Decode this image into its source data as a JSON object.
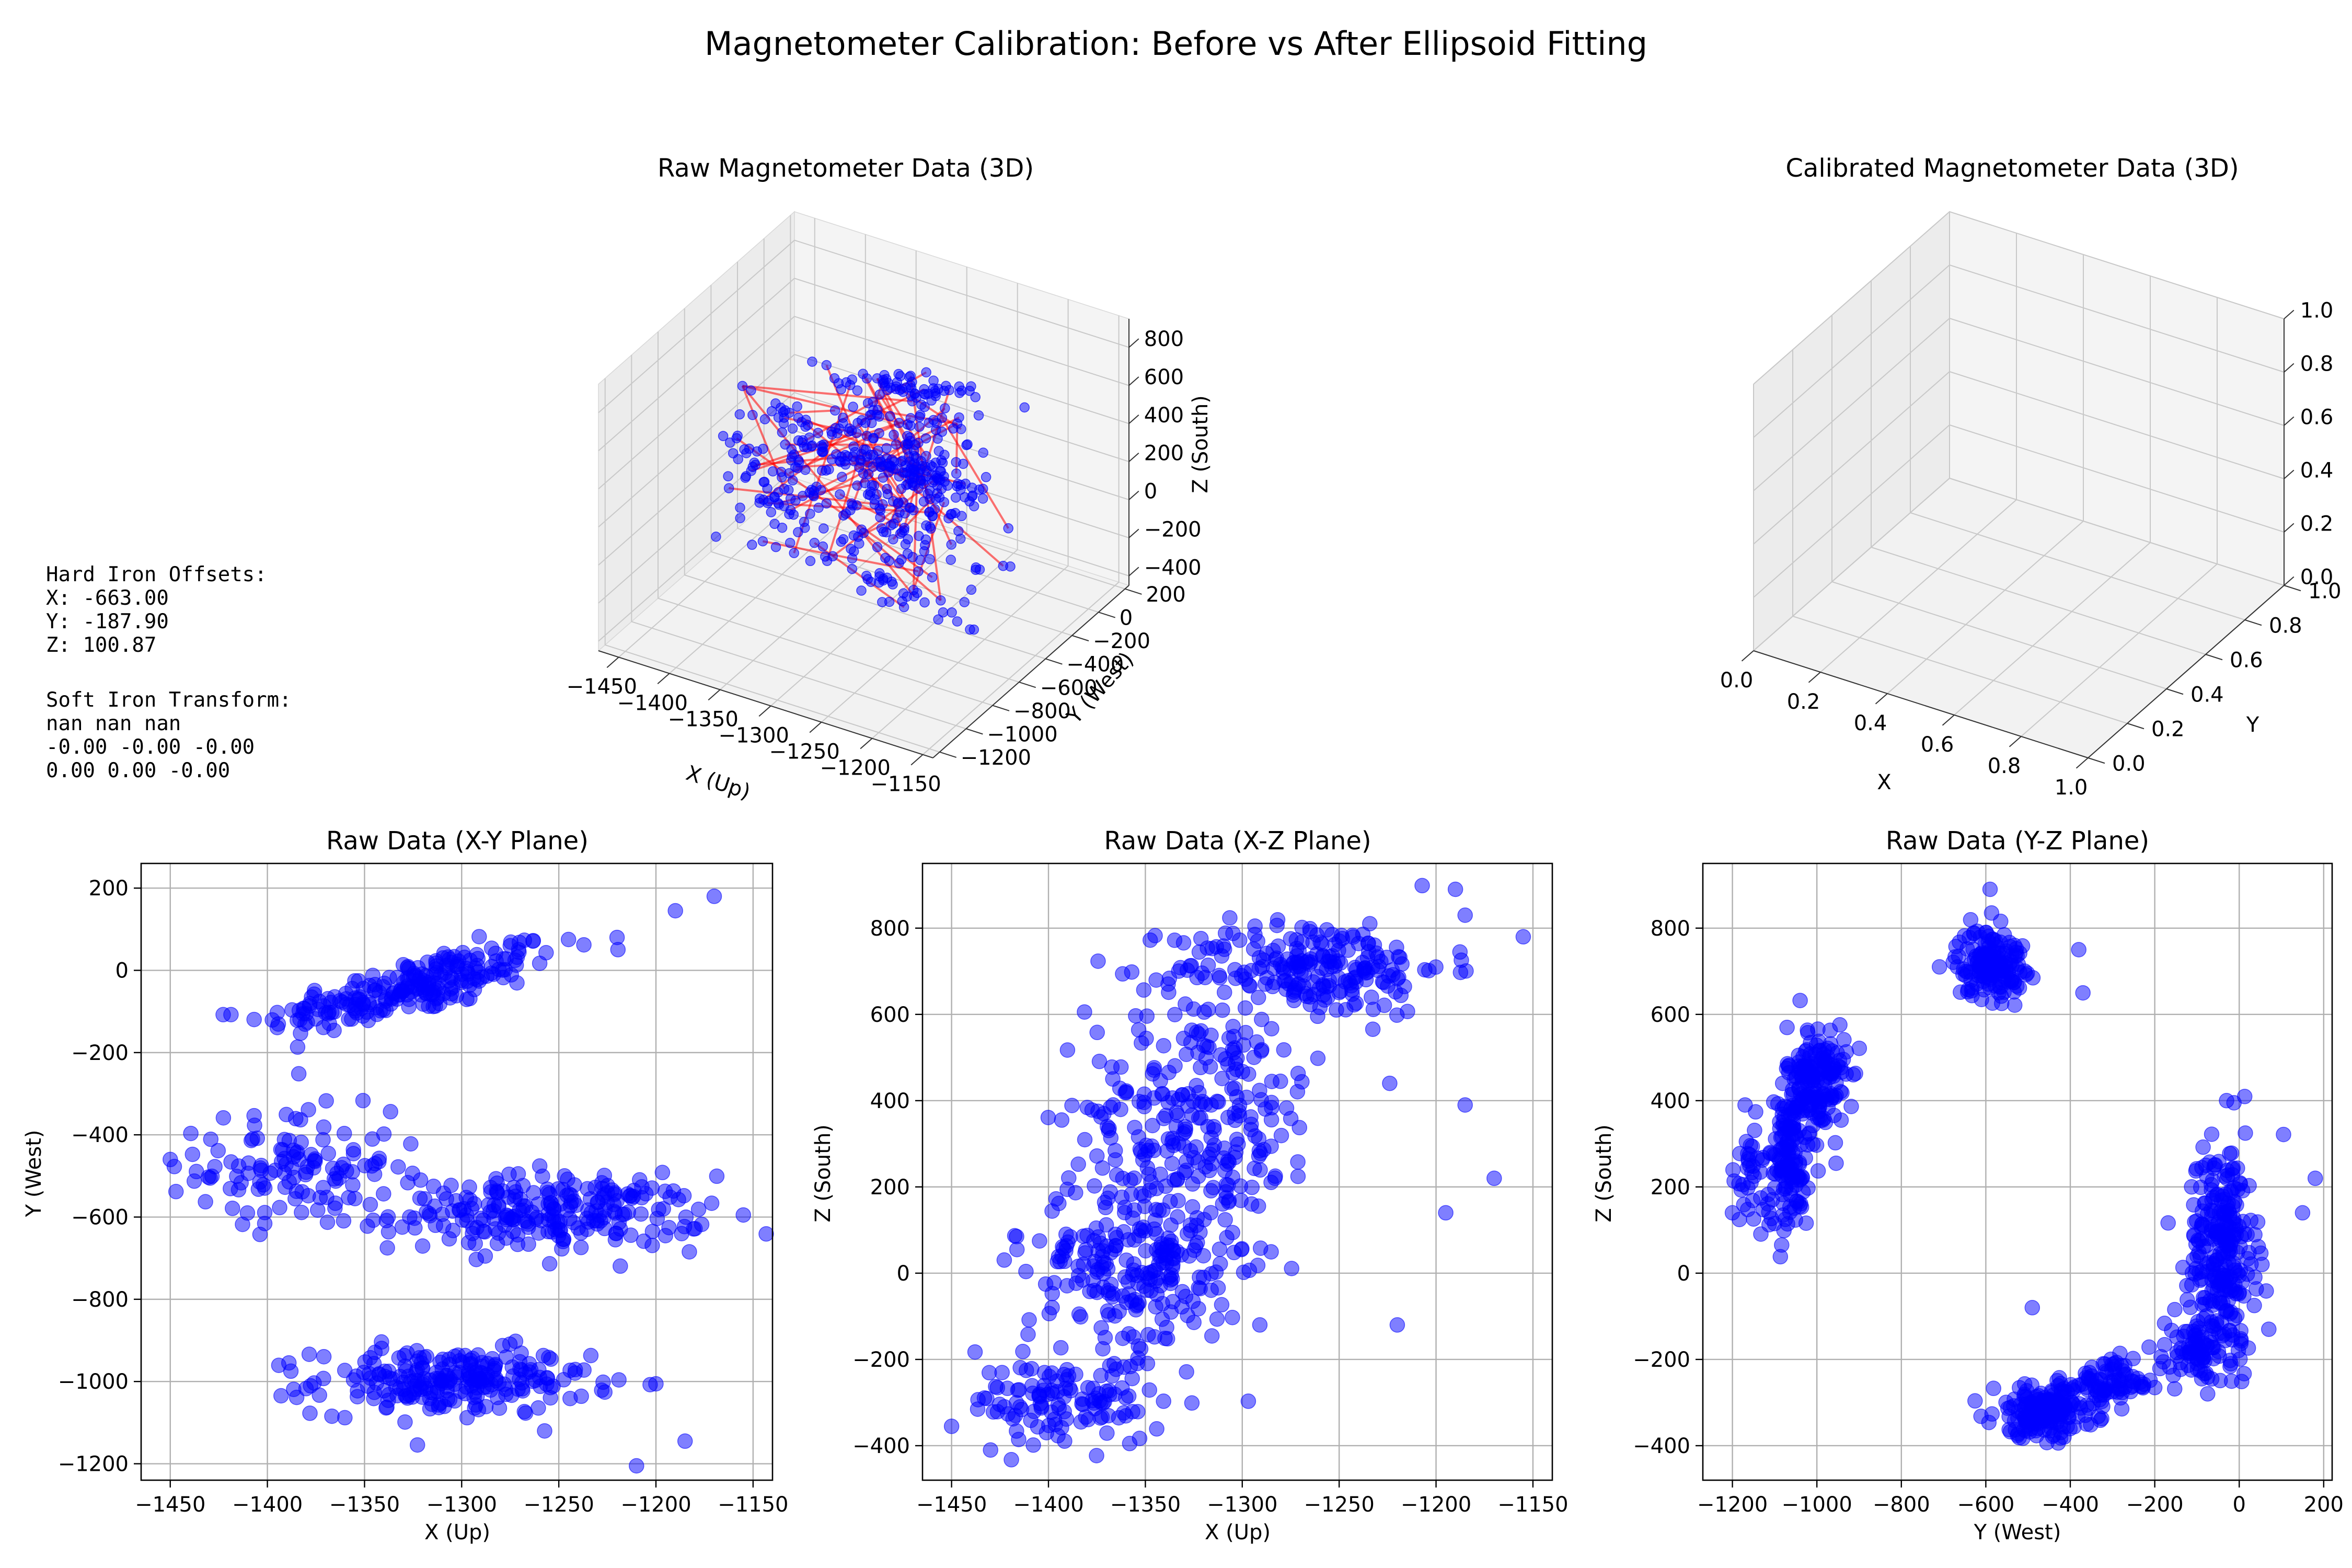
{
  "title": "Magnetometer Calibration: Before vs After Ellipsoid Fitting",
  "info": {
    "hard_iron_header": "Hard Iron Offsets:",
    "hard_iron": [
      "X: -663.00",
      "Y: -187.90",
      "Z: 100.87"
    ],
    "soft_iron_header": "Soft Iron Transform:",
    "soft_iron": [
      "nan nan nan",
      "-0.00 -0.00 -0.00",
      "0.00 0.00 -0.00"
    ]
  },
  "colors": {
    "points": "#0000ff",
    "hull": "#ff0000",
    "pane": "#f2f2f2"
  },
  "chart_data": [
    {
      "type": "scatter",
      "title": "Raw Magnetometer Data (3D)",
      "xlabel": "X (Up)",
      "ylabel": "Y (West)",
      "zlabel": "Z (South)",
      "xticks": [
        "−1450",
        "−1400",
        "−1350",
        "−1300",
        "−1250",
        "−1200",
        "−1150"
      ],
      "yticks": [
        "−1200",
        "−1000",
        "−800",
        "−600",
        "−400",
        "−200",
        "0",
        "200"
      ],
      "zticks": [
        "−400",
        "−200",
        "0",
        "200",
        "400",
        "600",
        "800"
      ],
      "xlim": [
        -1470,
        -1140
      ],
      "ylim": [
        -1250,
        230
      ],
      "zlim": [
        -450,
        950
      ],
      "clusters_note": "same points as 2D projections, with red convex hull edges"
    },
    {
      "type": "scatter",
      "title": "Calibrated Magnetometer Data (3D)",
      "xlabel": "X",
      "ylabel": "Y",
      "zlabel": "",
      "xticks": [
        "0.0",
        "0.2",
        "0.4",
        "0.6",
        "0.8",
        "1.0"
      ],
      "yticks": [
        "0.0",
        "0.2",
        "0.4",
        "0.6",
        "0.8",
        "1.0"
      ],
      "zticks": [
        "0.0",
        "0.2",
        "0.4",
        "0.6",
        "0.8",
        "1.0"
      ],
      "xlim": [
        0,
        1
      ],
      "ylim": [
        0,
        1
      ],
      "zlim": [
        0,
        1
      ],
      "points": []
    },
    {
      "type": "scatter",
      "title": "Raw Data (X-Y Plane)",
      "xlabel": "X (Up)",
      "ylabel": "Y (West)",
      "xlim": [
        -1465,
        -1140
      ],
      "ylim": [
        -1240,
        260
      ],
      "xticks": [
        -1450,
        -1400,
        -1350,
        -1300,
        -1250,
        -1200,
        -1150
      ],
      "yticks": [
        -1200,
        -1000,
        -800,
        -600,
        -400,
        -200,
        0,
        200
      ],
      "grid": true,
      "clusters": [
        {
          "cx": -1325,
          "cy": -40,
          "sx": 38,
          "sy": 35,
          "n": 230,
          "slope": 1.1
        },
        {
          "cx": -1385,
          "cy": -480,
          "sx": 25,
          "sy": 70,
          "n": 120,
          "slope": 0
        },
        {
          "cx": -1255,
          "cy": -590,
          "sx": 40,
          "sy": 45,
          "n": 240,
          "slope": 0
        },
        {
          "cx": -1305,
          "cy": -1000,
          "sx": 35,
          "sy": 40,
          "n": 240,
          "slope": 0
        }
      ],
      "outliers": [
        [
          -1450,
          -460
        ],
        [
          -1190,
          145
        ],
        [
          -1170,
          180
        ],
        [
          -1155,
          -595
        ],
        [
          -1210,
          -1205
        ],
        [
          -1185,
          -1145
        ],
        [
          -1220,
          80
        ],
        [
          -1245,
          75
        ]
      ]
    },
    {
      "type": "scatter",
      "title": "Raw Data (X-Z Plane)",
      "xlabel": "X (Up)",
      "ylabel": "Z (South)",
      "xlim": [
        -1465,
        -1140
      ],
      "ylim": [
        -480,
        950
      ],
      "xticks": [
        -1450,
        -1400,
        -1350,
        -1300,
        -1250,
        -1200,
        -1150
      ],
      "yticks": [
        -400,
        -200,
        0,
        200,
        400,
        600,
        800
      ],
      "grid": true,
      "clusters": [
        {
          "cx": -1265,
          "cy": 710,
          "sx": 35,
          "sy": 55,
          "n": 220,
          "slope": 0
        },
        {
          "cx": -1320,
          "cy": 380,
          "sx": 30,
          "sy": 140,
          "n": 260,
          "slope": 0
        },
        {
          "cx": -1355,
          "cy": 20,
          "sx": 28,
          "sy": 110,
          "n": 240,
          "slope": 0
        },
        {
          "cx": -1390,
          "cy": -300,
          "sx": 25,
          "sy": 50,
          "n": 120,
          "slope": 0
        }
      ],
      "outliers": [
        [
          -1450,
          -355
        ],
        [
          -1185,
          830
        ],
        [
          -1190,
          890
        ],
        [
          -1155,
          780
        ],
        [
          -1170,
          220
        ],
        [
          -1220,
          -120
        ],
        [
          -1185,
          390
        ],
        [
          -1195,
          140
        ]
      ]
    },
    {
      "type": "scatter",
      "title": "Raw Data (Y-Z Plane)",
      "xlabel": "Y (West)",
      "ylabel": "Z (South)",
      "xlim": [
        -1270,
        220
      ],
      "ylim": [
        -480,
        950
      ],
      "xticks": [
        -1200,
        -1000,
        -800,
        -600,
        -400,
        -200,
        0,
        200
      ],
      "yticks": [
        -400,
        -200,
        0,
        200,
        400,
        600,
        800
      ],
      "grid": true,
      "clusters": [
        {
          "cx": -590,
          "cy": 720,
          "sx": 40,
          "sy": 40,
          "n": 160,
          "slope": 0
        },
        {
          "cx": -1000,
          "cy": 440,
          "sx": 35,
          "sy": 70,
          "n": 180,
          "slope": 0
        },
        {
          "cx": -1070,
          "cy": 250,
          "sx": 25,
          "sy": 80,
          "n": 120,
          "slope": 0
        },
        {
          "cx": -40,
          "cy": 60,
          "sx": 40,
          "sy": 120,
          "n": 260,
          "slope": 0
        },
        {
          "cx": -90,
          "cy": -180,
          "sx": 40,
          "sy": 40,
          "n": 80,
          "slope": 0
        },
        {
          "cx": -460,
          "cy": -320,
          "sx": 60,
          "sy": 30,
          "n": 200,
          "slope": 0
        },
        {
          "cx": -300,
          "cy": -250,
          "sx": 60,
          "sy": 25,
          "n": 80,
          "slope": 0
        },
        {
          "cx": -1150,
          "cy": 220,
          "sx": 30,
          "sy": 60,
          "n": 40,
          "slope": 0
        }
      ],
      "outliers": [
        [
          180,
          220
        ],
        [
          150,
          140
        ],
        [
          -1200,
          140
        ],
        [
          -1170,
          390
        ],
        [
          -490,
          -80
        ],
        [
          -30,
          400
        ],
        [
          -590,
          890
        ],
        [
          -20,
          -210
        ],
        [
          70,
          -130
        ],
        [
          -380,
          750
        ],
        [
          -370,
          650
        ]
      ]
    }
  ]
}
